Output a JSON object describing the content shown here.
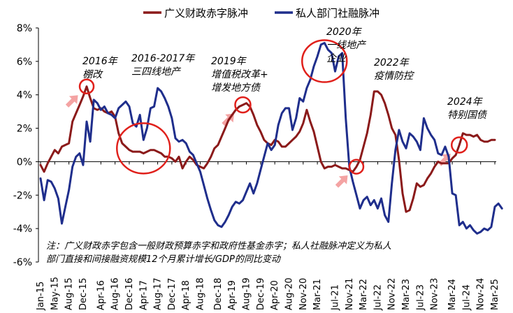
{
  "chart_data": {
    "type": "line",
    "y_tick_labels": [
      "8%",
      "6%",
      "4%",
      "2%",
      "0%",
      "-2%",
      "-4%",
      "-6%"
    ],
    "ylim": [
      -6,
      8
    ],
    "x_tick_labels": [
      "Jan-15",
      "May-15",
      "Aug-15",
      "Dec-15",
      "Apr-16",
      "Aug-16",
      "Dec-16",
      "Apr-17",
      "Aug-17",
      "Dec-17",
      "Apr-18",
      "Aug-18",
      "Dec-18",
      "Apr-19",
      "Aug-19",
      "Dec-19",
      "Apr-20",
      "Aug-20",
      "Nov-20",
      "Mar-21",
      "Jul-21",
      "Nov-21",
      "Mar-22",
      "Jul-22",
      "Nov-22",
      "Mar-23",
      "Jul-23",
      "Nov-23",
      "Mar-24",
      "Jul-24",
      "Nov-24",
      "Mar-25"
    ],
    "start": "2015-01",
    "grid": false,
    "legend_position": "top",
    "series": [
      {
        "name": "广义财政赤字脉冲",
        "color": "#8B1A1A",
        "values": [
          -0.2,
          -0.6,
          -0.1,
          0.3,
          0.7,
          0.5,
          0.9,
          1.0,
          1.1,
          2.4,
          2.9,
          3.4,
          3.9,
          4.5,
          3.8,
          3.2,
          3.1,
          3.2,
          3.0,
          2.9,
          3.0,
          2.7,
          1.7,
          1.1,
          0.9,
          0.7,
          0.6,
          0.6,
          0.6,
          0.5,
          0.6,
          0.7,
          0.7,
          0.6,
          0.5,
          0.3,
          0.3,
          0.2,
          0.0,
          0.3,
          -0.4,
          0.0,
          0.3,
          0.1,
          -0.2,
          -0.3,
          -0.4,
          -0.1,
          0.3,
          0.8,
          1.0,
          1.5,
          2.0,
          2.5,
          2.8,
          3.1,
          3.3,
          3.4,
          3.5,
          3.3,
          2.8,
          2.2,
          1.8,
          1.3,
          1.1,
          1.0,
          1.3,
          1.2,
          0.9,
          0.9,
          1.1,
          1.3,
          1.5,
          1.8,
          2.3,
          3.1,
          2.4,
          1.8,
          0.9,
          0.0,
          -0.4,
          -0.3,
          -0.3,
          -0.2,
          -0.3,
          -0.4,
          -0.4,
          -0.5,
          -0.6,
          -0.3,
          0.1,
          0.9,
          1.7,
          2.8,
          4.2,
          4.2,
          4.0,
          3.5,
          2.8,
          2.0,
          1.6,
          0.1,
          -1.9,
          -3.0,
          -2.9,
          -2.2,
          -1.3,
          -1.5,
          -1.4,
          -1.0,
          -0.7,
          -0.3,
          0.0,
          -0.1,
          -0.1,
          -0.1,
          0.2,
          0.4,
          1.0,
          1.7,
          1.6,
          1.6,
          1.5,
          1.6,
          1.3,
          1.2,
          1.2,
          1.3,
          1.3
        ]
      },
      {
        "name": "私人部门社融脉冲",
        "color": "#1F2E8C",
        "values": [
          -1.0,
          -2.3,
          -1.1,
          -1.2,
          -1.6,
          -2.2,
          -3.7,
          -2.7,
          -1.7,
          -0.3,
          0.3,
          0.5,
          -0.2,
          2.4,
          1.2,
          3.7,
          3.5,
          3.1,
          3.3,
          2.9,
          2.8,
          2.6,
          3.2,
          3.4,
          3.6,
          3.3,
          2.3,
          2.1,
          2.8,
          1.3,
          2.0,
          3.2,
          3.3,
          4.4,
          4.2,
          3.8,
          3.3,
          2.6,
          1.4,
          1.2,
          1.3,
          1.1,
          0.6,
          0.4,
          -0.1,
          -0.6,
          -1.4,
          -2.2,
          -2.9,
          -3.5,
          -3.8,
          -3.9,
          -3.6,
          -3.2,
          -2.7,
          -2.4,
          -2.5,
          -2.3,
          -1.8,
          -1.3,
          -1.9,
          -1.3,
          -0.5,
          0.3,
          1.1,
          0.7,
          1.0,
          2.2,
          2.9,
          3.2,
          3.2,
          1.9,
          2.6,
          3.8,
          3.6,
          4.4,
          4.9,
          5.7,
          6.3,
          7.0,
          7.1,
          6.7,
          6.5,
          5.4,
          6.3,
          6.5,
          2.6,
          -0.3,
          -1.2,
          -2.0,
          -2.8,
          -2.3,
          -2.1,
          -2.6,
          -2.3,
          -2.8,
          -2.2,
          -3.2,
          -3.6,
          -1.3,
          0.7,
          1.9,
          1.2,
          0.8,
          1.7,
          1.5,
          1.2,
          0.7,
          2.6,
          2.0,
          1.6,
          1.3,
          0.5,
          0.4,
          0.9,
          0.3,
          -1.9,
          -2.0,
          -3.8,
          -3.6,
          -4.0,
          -3.8,
          -4.1,
          -4.3,
          -4.2,
          -4.0,
          -4.1,
          -3.9,
          -2.7,
          -2.5,
          -2.8
        ]
      }
    ],
    "annotations": [
      {
        "lines": [
          "2016年",
          "棚改"
        ],
        "x_index": 13
      },
      {
        "lines": [
          "2016-2017年",
          "三四线地产"
        ],
        "x_index": 29
      },
      {
        "lines": [
          "2019年",
          "增值税改革+",
          "增发地方债"
        ],
        "x_index": 57
      },
      {
        "lines": [
          "2020年",
          "一线地产",
          "企业"
        ],
        "x_index": 80
      },
      {
        "lines": [
          "2022年",
          "疫情防控"
        ],
        "x_index": 89
      },
      {
        "lines": [
          "2024年",
          "特别国债"
        ],
        "x_index": 118
      }
    ],
    "highlights": [
      13,
      29,
      57,
      80,
      89,
      118
    ],
    "note_lines": [
      "注：广义财政赤字包含一般财政预算赤字和政府性基金赤字；私人社融脉冲定义为私人",
      "部门直接和间接融资规模12个月累计增长/GDP的同比变动"
    ]
  }
}
